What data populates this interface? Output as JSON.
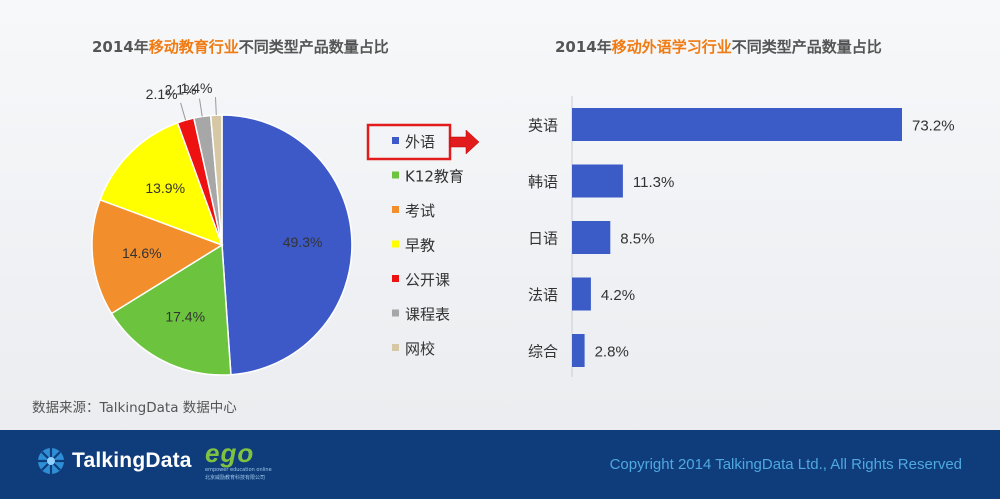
{
  "left_chart": {
    "title_prefix": "2014年",
    "title_highlight": "移动教育行业",
    "title_suffix": "不同类型产品数量占比"
  },
  "right_chart": {
    "title_prefix": "2014年",
    "title_highlight": "移动外语学习行业",
    "title_suffix": "不同类型产品数量占比"
  },
  "colors": {
    "title_highlight": "#f07b12",
    "bar": "#3b5bc7",
    "callout_box": "#e21c1c",
    "footer_bg": "#0f3d7c",
    "copyright": "#4fa8e0"
  },
  "chart_data": [
    {
      "type": "pie",
      "categories": [
        "外语",
        "K12教育",
        "考试",
        "早教",
        "公开课",
        "课程表",
        "网校"
      ],
      "values": [
        49.3,
        17.4,
        14.6,
        13.9,
        2.1,
        2.1,
        1.4
      ],
      "labels": [
        "49.3%",
        "17.4%",
        "14.6%",
        "13.9%",
        "2.1%",
        "2.1%",
        "1.4%"
      ],
      "colors": [
        "#3d59c8",
        "#6cc43e",
        "#f28f2c",
        "#ffff00",
        "#ee1111",
        "#a7a7a7",
        "#d6c8a4"
      ],
      "legend_placement": "right",
      "highlighted_category": "外语"
    },
    {
      "type": "bar",
      "orientation": "horizontal",
      "categories": [
        "英语",
        "韩语",
        "日语",
        "法语",
        "综合"
      ],
      "values": [
        73.2,
        11.3,
        8.5,
        4.2,
        2.8
      ],
      "labels": [
        "73.2%",
        "11.3%",
        "8.5%",
        "4.2%",
        "2.8%"
      ],
      "xlim": [
        0,
        73.2
      ],
      "grid": false
    }
  ],
  "source": "数据来源：TalkingData 数据中心",
  "footer": {
    "brand_name": "TalkingData",
    "partner_logo": "ego",
    "partner_tagline": "empower education online",
    "partner_company": "北京威励教育科技有限公司",
    "copyright": "Copyright 2014 TalkingData Ltd., All Rights Reserved"
  }
}
